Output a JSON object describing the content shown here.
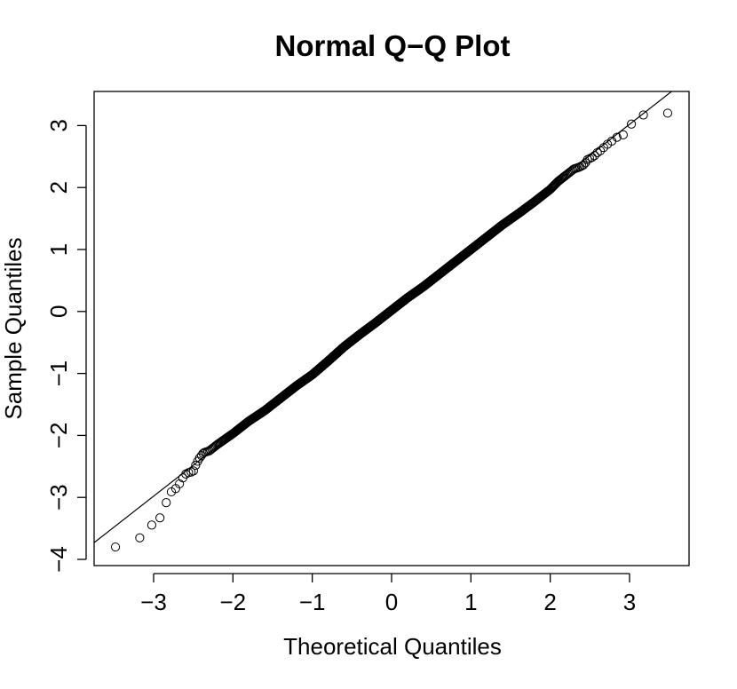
{
  "chart_data": {
    "type": "scatter",
    "title": "Normal Q−Q Plot",
    "xlabel": "Theoretical Quantiles",
    "ylabel": "Sample Quantiles",
    "xlim": [
      -3.75,
      3.75
    ],
    "ylim": [
      -4.1,
      3.55
    ],
    "xticks": [
      -3,
      -2,
      -1,
      0,
      1,
      2,
      3
    ],
    "xtick_labels": [
      "−3",
      "−2",
      "−1",
      "0",
      "1",
      "2",
      "3"
    ],
    "yticks": [
      -4,
      -3,
      -2,
      -1,
      0,
      1,
      2,
      3
    ],
    "ytick_labels": [
      "−4",
      "−3",
      "−2",
      "−1",
      "0",
      "1",
      "2",
      "3"
    ],
    "grid": false,
    "legend": "none",
    "reference_line": {
      "intercept": 0.02,
      "slope": 1.0
    },
    "series": [
      {
        "marker": "open-circle",
        "n_points": 2000,
        "x": [
          -3.48,
          -3.17,
          -2.99,
          -2.9,
          -2.8,
          -2.74,
          -2.69,
          -2.64,
          -2.58,
          -2.55,
          -2.5,
          -2.47,
          -2.43,
          -2.4,
          -2.37,
          -2.3,
          -2.2,
          -2.0,
          -1.8,
          -1.6,
          -1.4,
          -1.2,
          -1.0,
          -0.8,
          -0.6,
          -0.4,
          -0.2,
          0.0,
          0.2,
          0.4,
          0.6,
          0.8,
          1.0,
          1.2,
          1.4,
          1.6,
          1.8,
          2.0,
          2.1,
          2.2,
          2.3,
          2.37,
          2.43,
          2.47,
          2.55,
          2.58,
          2.64,
          2.7,
          2.75,
          2.82,
          2.92,
          3.0,
          3.17,
          3.48
        ],
        "y": [
          -3.8,
          -3.65,
          -3.4,
          -3.31,
          -2.93,
          -2.88,
          -2.82,
          -2.7,
          -2.6,
          -2.6,
          -2.58,
          -2.48,
          -2.38,
          -2.33,
          -2.28,
          -2.25,
          -2.15,
          -1.97,
          -1.77,
          -1.6,
          -1.4,
          -1.2,
          -1.02,
          -0.8,
          -0.57,
          -0.37,
          -0.18,
          0.02,
          0.22,
          0.4,
          0.6,
          0.8,
          1.0,
          1.2,
          1.4,
          1.58,
          1.77,
          1.97,
          2.1,
          2.2,
          2.3,
          2.33,
          2.37,
          2.45,
          2.5,
          2.55,
          2.6,
          2.68,
          2.72,
          2.8,
          2.85,
          3.0,
          3.17,
          3.2
        ]
      }
    ]
  }
}
